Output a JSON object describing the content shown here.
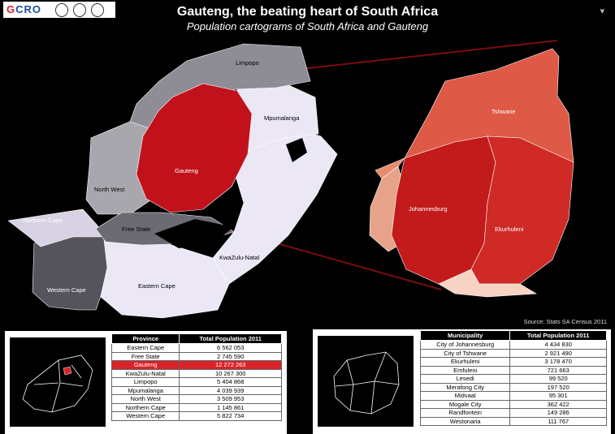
{
  "header": {
    "title": "Gauteng, the beating heart of South Africa",
    "subtitle": "Population cartograms of South Africa and Gauteng",
    "logo_text": "GCRO"
  },
  "map_left": {
    "labels": {
      "limpopo": "Limpopo",
      "mpumalanga": "Mpumalanga",
      "gauteng": "Gauteng",
      "north_west": "North West",
      "northern_cape": "Northern Cape",
      "free_state": "Free State",
      "kwazulu_natal": "KwaZulu-Natal",
      "western_cape": "Western Cape",
      "eastern_cape": "Eastern Cape"
    }
  },
  "map_right": {
    "labels": {
      "tshwane": "Tshwane",
      "johannesburg": "Johannesburg",
      "ekurhuleni": "Ekurhuleni"
    }
  },
  "source": "Source: Stats SA Census 2011",
  "province_table": {
    "headers": [
      "Province",
      "Total Population 2011"
    ],
    "rows": [
      [
        "Eastern Cape",
        "6 562 053"
      ],
      [
        "Free State",
        "2 745 590"
      ],
      [
        "Gauteng",
        "12 272 263"
      ],
      [
        "KwaZulu-Natal",
        "10 267 300"
      ],
      [
        "Limpopo",
        "5 404 868"
      ],
      [
        "Mpumalanga",
        "4 039 939"
      ],
      [
        "North West",
        "3 509 953"
      ],
      [
        "Northern Cape",
        "1 145 861"
      ],
      [
        "Western Cape",
        "5 822 734"
      ]
    ],
    "highlight": "Gauteng"
  },
  "municipality_table": {
    "headers": [
      "Municipality",
      "Total Population 2011"
    ],
    "rows": [
      [
        "City of Johannesburg",
        "4 434 830"
      ],
      [
        "City of Tshwane",
        "2 921 490"
      ],
      [
        "Ekurhuleni",
        "3 178 470"
      ],
      [
        "Emfuleni",
        "721 663"
      ],
      [
        "Lesedi",
        "99 520"
      ],
      [
        "Merafong City",
        "197 520"
      ],
      [
        "Midvaal",
        "95 301"
      ],
      [
        "Mogale City",
        "362 422"
      ],
      [
        "Randfontein",
        "149 286"
      ],
      [
        "Westonaria",
        "111 767"
      ]
    ]
  },
  "colors": {
    "gauteng_red": "#c1121c",
    "highlight_red": "#d8232a",
    "limpopo_grey": "#8e8c95",
    "light_lilac": "#ece7f5"
  }
}
